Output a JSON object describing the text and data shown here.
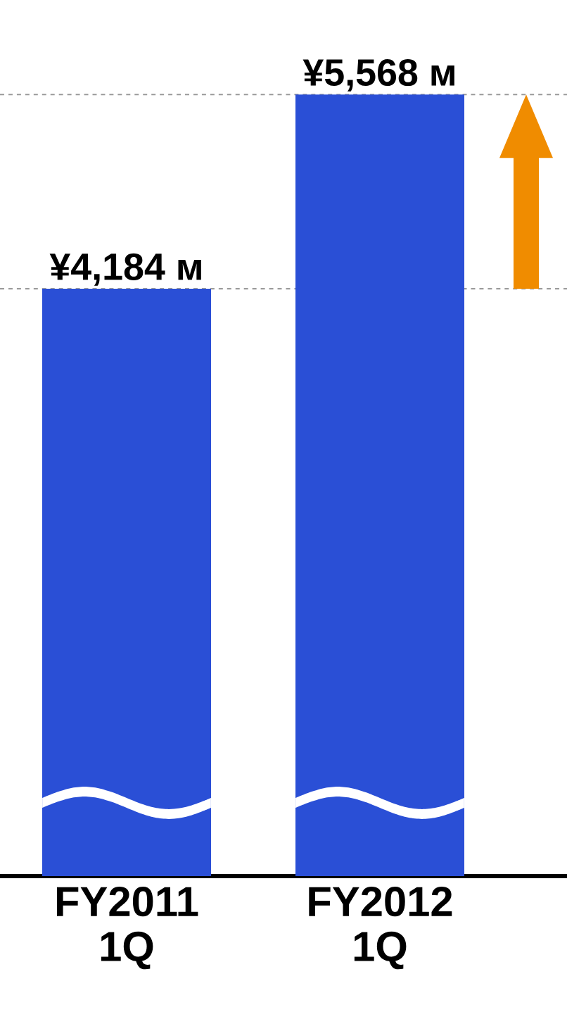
{
  "chart_data": {
    "type": "bar",
    "categories": [
      "FY2011 1Q",
      "FY2012 1Q"
    ],
    "values": [
      4184,
      5568
    ],
    "value_labels": [
      "¥4,184 м",
      "¥5,568 м"
    ],
    "color": "#2a4fd6",
    "tick_labels": "x",
    "ref_lines": [
      {
        "axis": "y",
        "value": 5568,
        "color": "#999999",
        "line_style": "dashed"
      },
      {
        "axis": "y",
        "value": 4184,
        "color": "#999999",
        "line_style": "dashed"
      }
    ]
  }
}
